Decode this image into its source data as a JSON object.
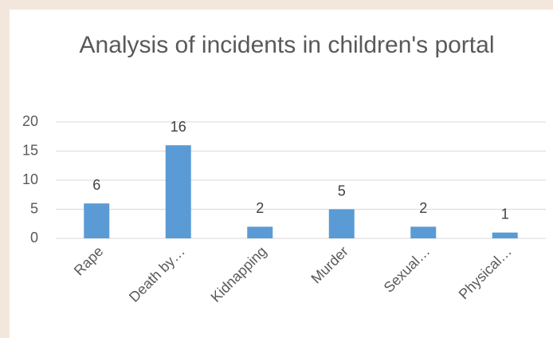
{
  "chart_data": {
    "type": "bar",
    "title": "Analysis of incidents in children's portal",
    "categories": [
      "Rape",
      "Death by…",
      "Kidnapping",
      "Murder",
      "Sexual…",
      "Physical…"
    ],
    "values": [
      6,
      16,
      2,
      5,
      2,
      1
    ],
    "color": "#5b9bd5",
    "ylim": [
      0,
      20
    ],
    "yticks": [
      0,
      5,
      10,
      15,
      20
    ],
    "grid": true
  }
}
